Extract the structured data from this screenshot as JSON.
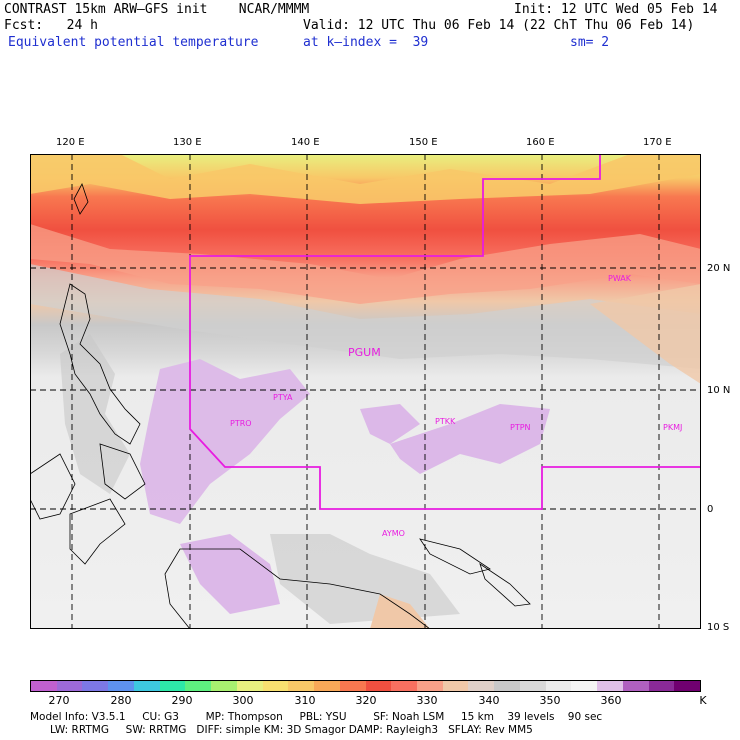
{
  "header": {
    "title": "CONTRAST 15km ARW–GFS init    NCAR/MMMM",
    "init": "Init: 12 UTC Wed 05 Feb 14",
    "fcst": "Fcst:   24 h",
    "valid": "Valid: 12 UTC Thu 06 Feb 14 (22 ChT Thu 06 Feb 14)",
    "field": "Equivalent potential temperature",
    "level": "at k–index =  39",
    "smooth": "sm= 2"
  },
  "map": {
    "lon_labels": [
      "120 E",
      "130 E",
      "140 E",
      "150 E",
      "160 E",
      "170 E"
    ],
    "lat_labels": [
      "20 N",
      "10 N",
      "0",
      "10 S"
    ],
    "stations": [
      {
        "name": "PGUM"
      },
      {
        "name": "PWAK"
      },
      {
        "name": "PTYA"
      },
      {
        "name": "PTRO"
      },
      {
        "name": "PTKK"
      },
      {
        "name": "PTPN"
      },
      {
        "name": "PKMJ"
      },
      {
        "name": "AYMO"
      }
    ],
    "domain_color": "#e81ce0",
    "gridline_color": "#000000"
  },
  "colorbar": {
    "labels": [
      "270",
      "280",
      "290",
      "300",
      "310",
      "320",
      "330",
      "340",
      "350",
      "360"
    ],
    "unit": "K",
    "colors": [
      "#c060d0",
      "#9d6ad8",
      "#7d78e6",
      "#5e92ef",
      "#3ec8e0",
      "#2ee8a8",
      "#5ef080",
      "#a8f070",
      "#e8f080",
      "#f8e070",
      "#f8c868",
      "#f8a858",
      "#f87850",
      "#f05040",
      "#f87060",
      "#f8a088",
      "#f0c8a8",
      "#e0d0c8",
      "#c8c8c8",
      "#d8d8d8",
      "#ebebeb",
      "#f4f4f4",
      "#e0c0e8",
      "#b060c0",
      "#8a2a98",
      "#700070"
    ]
  },
  "footer": {
    "line1": "Model Info: V3.5.1     CU: G3        MP: Thompson     PBL: YSU        SF: Noah LSM     15 km    39 levels    90 sec",
    "line2": "      LW: RRTMG     SW: RRTMG   DIFF: simple KM: 3D Smagor DAMP: Rayleigh3   SFLAY: Rev MM5"
  }
}
